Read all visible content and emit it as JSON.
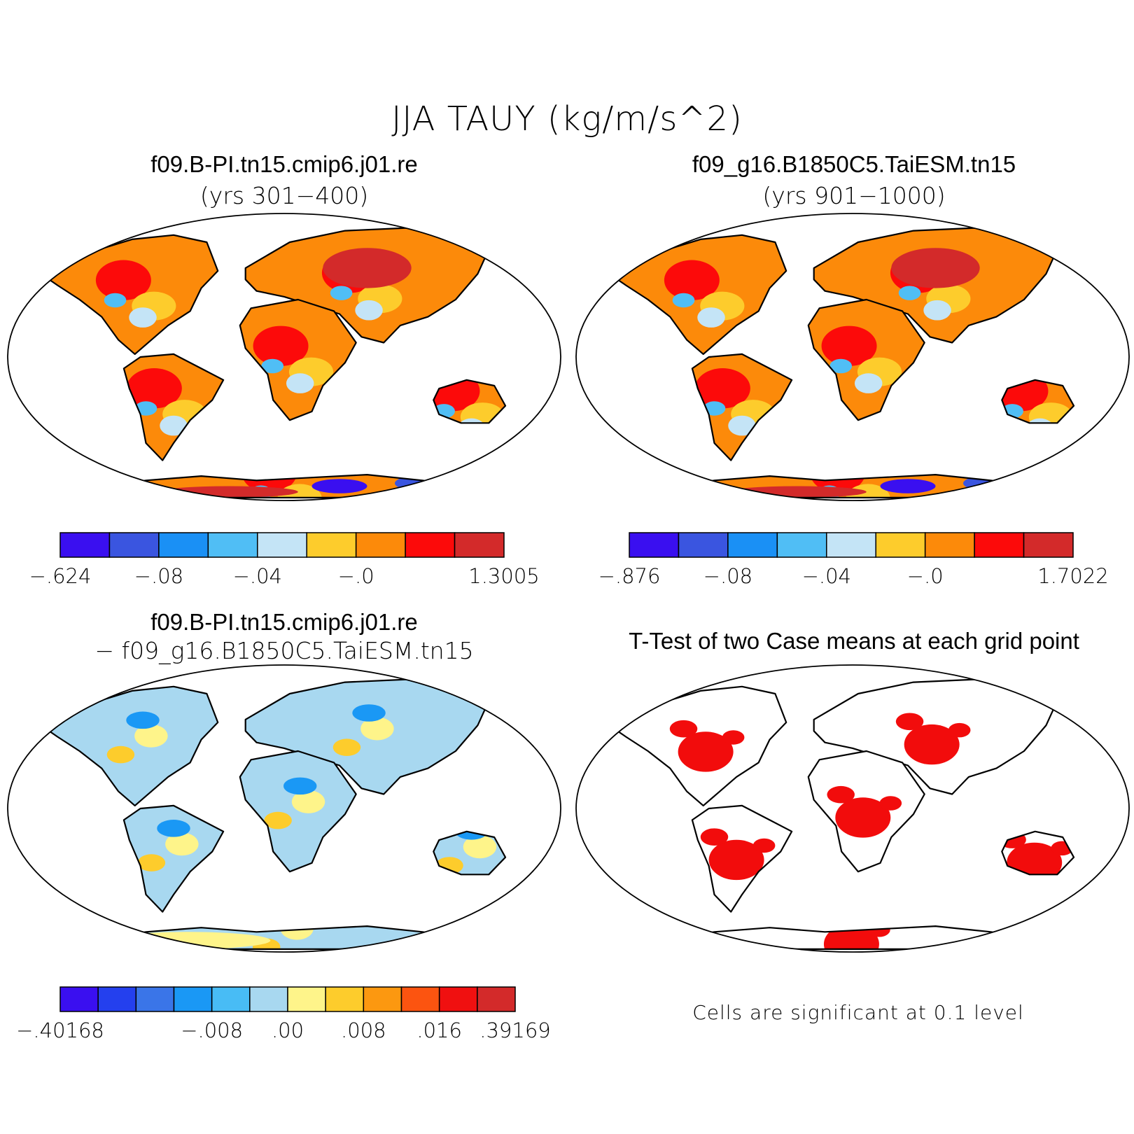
{
  "title": "JJA TAUY (kg/m/s^2)",
  "panels": [
    {
      "id": "case1",
      "title": "f09.B-PI.tn15.cmip6.j01.re",
      "subtitle": "(yrs 301−400)",
      "colorbar": {
        "colors": [
          "#3a0ff0",
          "#3a55e0",
          "#1a90f5",
          "#50bef5",
          "#c4e4f6",
          "#fdcc2c",
          "#fc8a0a",
          "#fc0a0a",
          "#d32a2a"
        ],
        "labels": [
          "−.624",
          "−.08",
          "−.04",
          "−.0",
          "1.3005"
        ]
      }
    },
    {
      "id": "case2",
      "title": "f09_g16.B1850C5.TaiESM.tn15",
      "subtitle": "(yrs 901−1000)",
      "colorbar": {
        "colors": [
          "#3a0ff0",
          "#3a55e0",
          "#1a90f5",
          "#50bef5",
          "#c4e4f6",
          "#fdcc2c",
          "#fc8a0a",
          "#fc0a0a",
          "#d32a2a"
        ],
        "labels": [
          "−.876",
          "−.08",
          "−.04",
          "−.0",
          "1.7022"
        ]
      }
    },
    {
      "id": "diff",
      "title": "f09.B-PI.tn15.cmip6.j01.re",
      "subtitle": "− f09_g16.B1850C5.TaiESM.tn15",
      "colorbar": {
        "colors": [
          "#3a0ff0",
          "#2440ee",
          "#3a75e8",
          "#1a98f5",
          "#48bcf5",
          "#a8d8f0",
          "#fef48a",
          "#fdcc2c",
          "#fc9810",
          "#fc5410",
          "#f01010",
          "#d32a2a"
        ],
        "labels": [
          "−.40168",
          "−.008",
          ".00",
          ".008",
          ".016",
          ".39169"
        ]
      }
    },
    {
      "id": "ttest",
      "title": "T-Test of two Case means at each grid point",
      "note": "Cells are significant at 0.1 level"
    }
  ]
}
